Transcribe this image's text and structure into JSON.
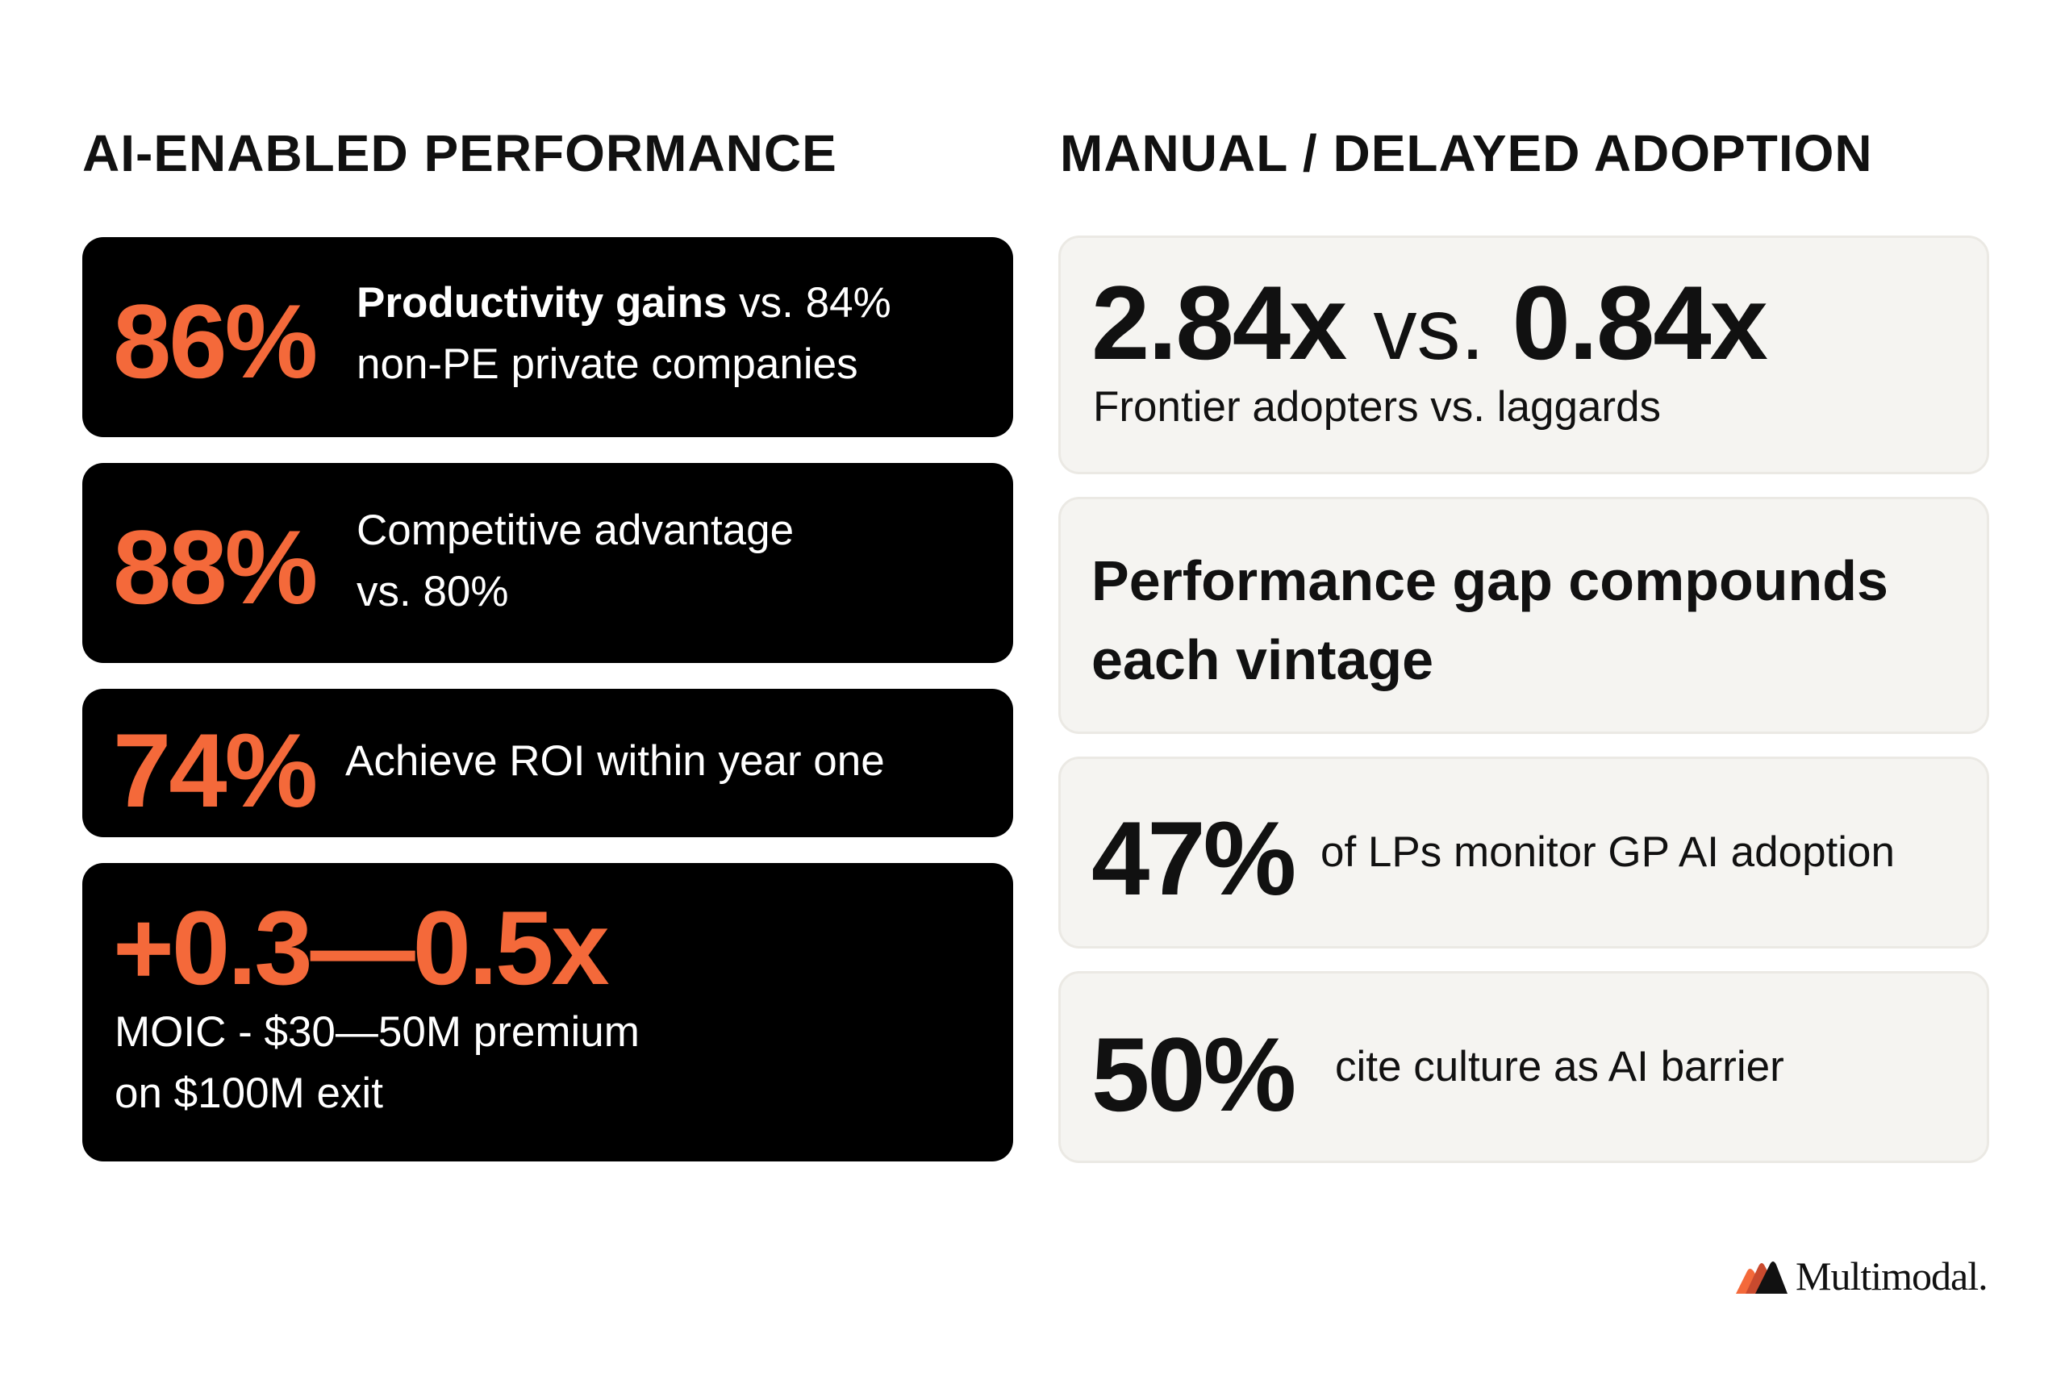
{
  "left_heading": "AI-ENABLED PERFORMANCE",
  "right_heading": "MANUAL / DELAYED ADOPTION",
  "colors": {
    "accent": "#f4693a",
    "dark_card": "#000000",
    "light_card": "#f5f4f1"
  },
  "ai_cards": [
    {
      "stat": "86%",
      "desc_bold": "Productivity gains",
      "desc": " vs. 84%",
      "desc_line2": "non-PE private companies"
    },
    {
      "stat": "88%",
      "desc_line1": "Competitive advantage",
      "desc_line2": "vs. 80%"
    },
    {
      "stat": "74%",
      "desc": "Achieve ROI within year one"
    },
    {
      "stat": "+0.3—0.5x",
      "desc_line1": "MOIC - $30—50M premium",
      "desc_line2": "on $100M exit"
    }
  ],
  "manual_cards": [
    {
      "stat_a": "2.84x",
      "vs": "vs.",
      "stat_b": "0.84x",
      "desc": "Frontier adopters vs. laggards"
    },
    {
      "title_line1": "Performance gap compounds",
      "title_line2": "each vintage"
    },
    {
      "stat": "47%",
      "desc": "of LPs monitor GP AI adoption"
    },
    {
      "stat": "50%",
      "desc": "cite culture as AI barrier"
    }
  ],
  "logo": {
    "text": "Multimodal.",
    "icon": "multimodal-logo-icon"
  }
}
